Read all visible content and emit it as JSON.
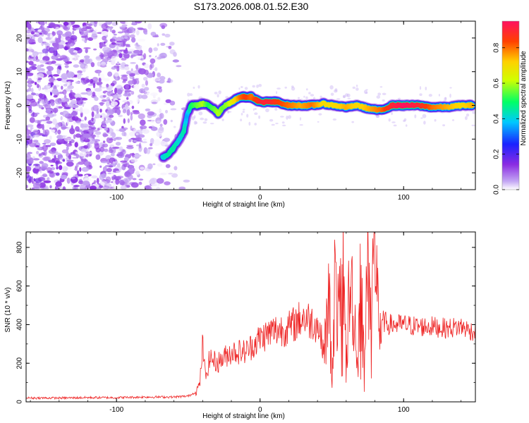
{
  "title": "S173.2026.008.01.52.E30",
  "chart_data": [
    {
      "type": "heatmap",
      "title": "S173.2026.008.01.52.E30",
      "xlabel": "Height of straight line (km)",
      "ylabel": "Frequency (Hz)",
      "xlim": [
        -163,
        150
      ],
      "ylim": [
        -25,
        25
      ],
      "xticks": [
        -100,
        0,
        100
      ],
      "yticks": [
        -20,
        -10,
        0,
        10,
        20
      ],
      "colorbar": {
        "label": "Normalized spectral amplitude",
        "range": [
          0.0,
          0.95
        ],
        "ticks": [
          0.0,
          0.2,
          0.4,
          0.6,
          0.8
        ],
        "colors": [
          "#ffffff",
          "#c3a6f3",
          "#8a2be2",
          "#1a22ff",
          "#00c8ff",
          "#00ff66",
          "#d0ff00",
          "#ffd000",
          "#ff4000",
          "#ff1060"
        ]
      },
      "ridge": {
        "x": [
          -68,
          -64,
          -60,
          -56,
          -53,
          -51,
          -48,
          -44,
          -40,
          -36,
          -32,
          -29,
          -26,
          -22,
          -18,
          -14,
          -10,
          -6,
          0,
          6,
          12,
          20,
          28,
          36,
          44,
          52,
          60,
          68,
          76,
          84,
          92,
          100,
          110,
          120,
          130,
          140,
          148
        ],
        "y": [
          -15.5,
          -14.5,
          -12.5,
          -10,
          -7.5,
          -3,
          0,
          0,
          0.5,
          0,
          -1,
          -2.5,
          -0.5,
          0.5,
          1.5,
          2.5,
          2.5,
          2.5,
          1,
          1,
          1,
          0,
          0,
          0,
          0.5,
          0,
          -0.5,
          0,
          -1,
          -1.5,
          0,
          0,
          0,
          -0.5,
          -0.5,
          0,
          0
        ],
        "amplitude": [
          0.4,
          0.45,
          0.45,
          0.4,
          0.45,
          0.35,
          0.5,
          0.55,
          0.6,
          0.5,
          0.55,
          0.6,
          0.55,
          0.6,
          0.7,
          0.8,
          0.85,
          0.8,
          0.9,
          0.9,
          0.85,
          0.8,
          0.75,
          0.8,
          0.7,
          0.7,
          0.75,
          0.7,
          0.75,
          0.8,
          0.9,
          0.95,
          0.9,
          0.8,
          0.75,
          0.7,
          0.75
        ]
      },
      "noise_region_x": [
        -163,
        -50
      ]
    },
    {
      "type": "line",
      "xlabel": "Height of straight line (km)",
      "ylabel": "SNR (10 * v/v)",
      "xlim": [
        -163,
        150
      ],
      "ylim": [
        0,
        880
      ],
      "xticks": [
        -100,
        0,
        100
      ],
      "yticks": [
        0,
        200,
        400,
        600,
        800
      ],
      "color": "#ee2222",
      "series": [
        {
          "name": "SNR",
          "x": [
            -163,
            -140,
            -120,
            -100,
            -80,
            -60,
            -50,
            -45,
            -42,
            -40,
            -38,
            -35,
            -30,
            -20,
            -10,
            0,
            10,
            20,
            30,
            40,
            45,
            48,
            50,
            52,
            55,
            58,
            60,
            62,
            65,
            68,
            70,
            72,
            75,
            78,
            80,
            82,
            85,
            90,
            100,
            110,
            120,
            130,
            140,
            150
          ],
          "y": [
            20,
            20,
            22,
            22,
            25,
            25,
            30,
            50,
            90,
            300,
            120,
            230,
            200,
            260,
            260,
            330,
            370,
            380,
            440,
            400,
            260,
            560,
            100,
            610,
            420,
            690,
            180,
            550,
            560,
            160,
            700,
            250,
            650,
            560,
            860,
            480,
            420,
            400,
            400,
            390,
            390,
            380,
            390,
            360
          ]
        }
      ]
    }
  ]
}
